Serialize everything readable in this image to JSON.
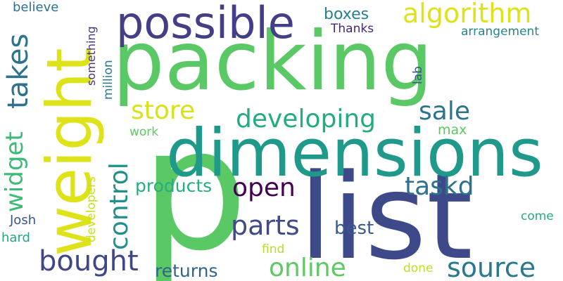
{
  "word_cloud": {
    "background": "#ffffff",
    "words": [
      {
        "text": "packing",
        "color": "#5ac864"
      },
      {
        "text": "p",
        "color": "#5ac864"
      },
      {
        "text": "list",
        "color": "#3e4989"
      },
      {
        "text": "dimensions",
        "color": "#1f9a8a"
      },
      {
        "text": "weight",
        "color": "#dde318"
      },
      {
        "text": "possible",
        "color": "#433e85"
      },
      {
        "text": "algorithm",
        "color": "#dde318"
      },
      {
        "text": "developing",
        "color": "#25ab82"
      },
      {
        "text": "store",
        "color": "#d8e219"
      },
      {
        "text": "sale",
        "color": "#2c738e"
      },
      {
        "text": "open",
        "color": "#440154"
      },
      {
        "text": "taskd",
        "color": "#2c728e"
      },
      {
        "text": "parts",
        "color": "#3e4a89"
      },
      {
        "text": "source",
        "color": "#2a788e"
      },
      {
        "text": "online",
        "color": "#5ec962"
      },
      {
        "text": "bought",
        "color": "#3f4788"
      },
      {
        "text": "control",
        "color": "#21908d"
      },
      {
        "text": "widget",
        "color": "#3bbb75"
      },
      {
        "text": "takes",
        "color": "#2c728e"
      },
      {
        "text": "products",
        "color": "#27ad81"
      },
      {
        "text": "returns",
        "color": "#33638d"
      },
      {
        "text": "best",
        "color": "#38598c"
      },
      {
        "text": "boxes",
        "color": "#26818e"
      },
      {
        "text": "Thanks",
        "color": "#482475"
      },
      {
        "text": "arrangement",
        "color": "#25848e"
      },
      {
        "text": "believe",
        "color": "#2d718e"
      },
      {
        "text": "something",
        "color": "#46327e"
      },
      {
        "text": "million",
        "color": "#2a788e"
      },
      {
        "text": "developers",
        "color": "#c8e020"
      },
      {
        "text": "lab",
        "color": "#3b528b"
      },
      {
        "text": "max",
        "color": "#5dc863"
      },
      {
        "text": "work",
        "color": "#5ec962"
      },
      {
        "text": "Josh",
        "color": "#3a548c"
      },
      {
        "text": "hard",
        "color": "#22a785"
      },
      {
        "text": "find",
        "color": "#b5de2b"
      },
      {
        "text": "come",
        "color": "#25ab82"
      },
      {
        "text": "done",
        "color": "#c2df23"
      }
    ]
  }
}
